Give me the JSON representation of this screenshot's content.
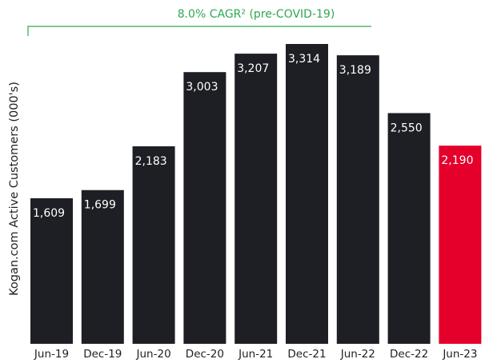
{
  "chart_data": {
    "type": "bar",
    "y_label": "Kogan.com Active Customers (000's)",
    "annotation": "8.0% CAGR² (pre-COVID-19)",
    "categories": [
      "Jun-19",
      "Dec-19",
      "Jun-20",
      "Dec-20",
      "Jun-21",
      "Dec-21",
      "Jun-22",
      "Dec-22",
      "Jun-23"
    ],
    "values": [
      1609,
      1699,
      2183,
      3003,
      3207,
      3314,
      3189,
      2550,
      2190
    ],
    "value_labels": [
      "1,609",
      "1,699",
      "2,183",
      "3,003",
      "3,207",
      "3,314",
      "3,189",
      "2,550",
      "2,190"
    ],
    "colors": [
      "#1e1f24",
      "#1e1f24",
      "#1e1f24",
      "#1e1f24",
      "#1e1f24",
      "#1e1f24",
      "#1e1f24",
      "#1e1f24",
      "#e4002b"
    ]
  }
}
